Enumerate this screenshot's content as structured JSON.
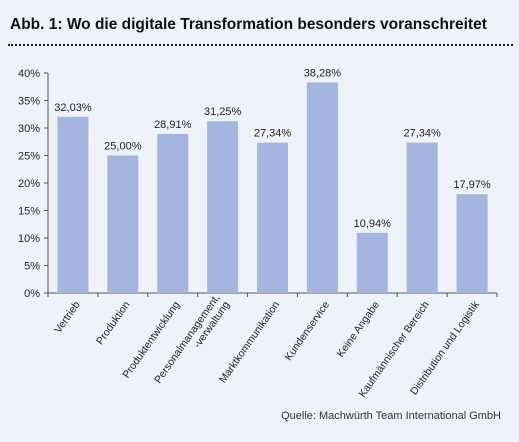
{
  "title": "Abb. 1: Wo die digitale Transformation besonders voranschreitet",
  "source": "Quelle: Machwürth Team International GmbH",
  "colors": {
    "bar": "#a4b6e0",
    "background": "#eef2f9",
    "axis": "#555555"
  },
  "chart_data": {
    "type": "bar",
    "title": "Abb. 1: Wo die digitale Transformation besonders voranschreitet",
    "categories": [
      "Vertrieb",
      "Produktion",
      "Produktentwicklung",
      "Personalmanagement, -verwaltung",
      "Marktkommunikation",
      "Kundenservice",
      "Keine Angabe",
      "Kaufmännischer Bereich",
      "Distribution und Logistik"
    ],
    "category_lines": [
      [
        "Vertrieb"
      ],
      [
        "Produktion"
      ],
      [
        "Produktentwicklung"
      ],
      [
        "Personalmanagement,",
        "-verwaltung"
      ],
      [
        "Marktkommunikation"
      ],
      [
        "Kundenservice"
      ],
      [
        "Keine Angabe"
      ],
      [
        "Kaufmännischer Bereich"
      ],
      [
        "Distribution und Logistik"
      ]
    ],
    "values": [
      32.03,
      25.0,
      28.91,
      31.25,
      27.34,
      38.28,
      10.94,
      27.34,
      17.97
    ],
    "value_labels": [
      "32,03%",
      "25,00%",
      "28,91%",
      "31,25%",
      "27,34%",
      "38,28%",
      "10,94%",
      "27,34%",
      "17,97%"
    ],
    "ylim": [
      0,
      40
    ],
    "yticks": [
      0,
      5,
      10,
      15,
      20,
      25,
      30,
      35,
      40
    ],
    "ytick_labels": [
      "0%",
      "5%",
      "10%",
      "15%",
      "20%",
      "25%",
      "30%",
      "35%",
      "40%"
    ],
    "xlabel": "",
    "ylabel": "",
    "grid": false,
    "legend": "none"
  }
}
